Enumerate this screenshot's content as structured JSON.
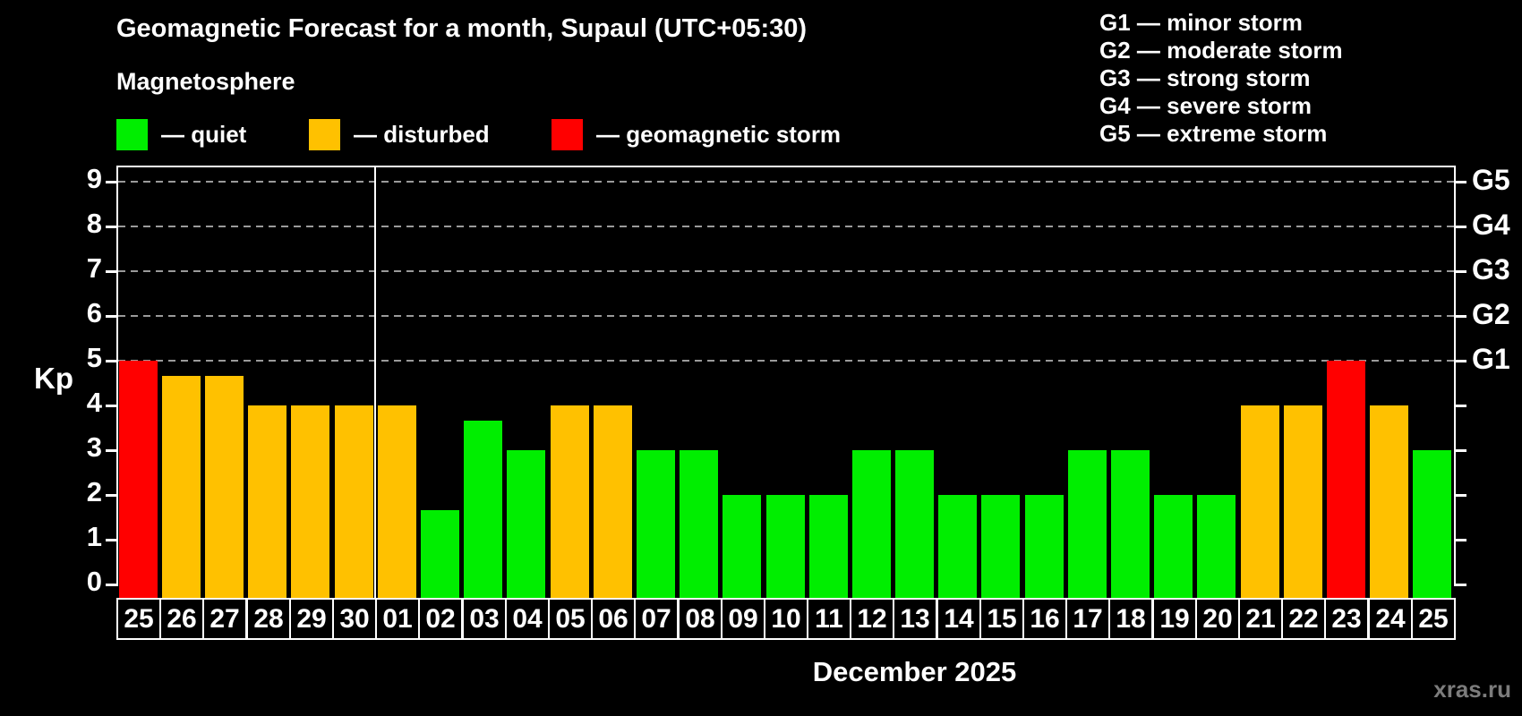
{
  "header": {
    "title": "Geomagnetic Forecast for a month, Supaul (UTC+05:30)",
    "subtitle": "Magnetosphere"
  },
  "kp_legend": {
    "items": [
      {
        "status": "quiet",
        "label": "— quiet"
      },
      {
        "status": "disturbed",
        "label": "— disturbed"
      },
      {
        "status": "storm",
        "label": "— geomagnetic storm"
      }
    ]
  },
  "g_legend": {
    "items": [
      "G1 — minor storm",
      "G2 — moderate storm",
      "G3 — strong storm",
      "G4 — severe storm",
      "G5 — extreme storm"
    ]
  },
  "colors": {
    "quiet": "#00ee00",
    "disturbed": "#ffc100",
    "storm": "#ff0000",
    "grid": "#9a9a9a",
    "axis": "#ffffff",
    "watermark": "#7c7c7c"
  },
  "axes": {
    "y_left_label": "Kp",
    "y_left_ticks": [
      "0",
      "1",
      "2",
      "3",
      "4",
      "5",
      "6",
      "7",
      "8",
      "9"
    ],
    "y_right_ticks": [
      {
        "label": "G1",
        "kp": 5
      },
      {
        "label": "G2",
        "kp": 6
      },
      {
        "label": "G3",
        "kp": 7
      },
      {
        "label": "G4",
        "kp": 8
      },
      {
        "label": "G5",
        "kp": 9
      }
    ],
    "x_label": "December 2025"
  },
  "chart_data": {
    "type": "bar",
    "title": "Geomagnetic Forecast for a month, Supaul (UTC+05:30)",
    "ylabel": "Kp",
    "xlabel": "December 2025",
    "ylim": [
      0,
      9.4
    ],
    "grid": "dashed horizontal at Kp 5-9 (G1-G5)",
    "grid_levels": [
      5,
      6,
      7,
      8,
      9
    ],
    "month_boundary_after_index": 5,
    "categories": [
      "25",
      "26",
      "27",
      "28",
      "29",
      "30",
      "01",
      "02",
      "03",
      "04",
      "05",
      "06",
      "07",
      "08",
      "09",
      "10",
      "11",
      "12",
      "13",
      "14",
      "15",
      "16",
      "17",
      "18",
      "19",
      "20",
      "21",
      "22",
      "23",
      "24",
      "25"
    ],
    "values": [
      5,
      4.67,
      4.67,
      4,
      4,
      4,
      4,
      1.67,
      3.67,
      3,
      4,
      4,
      3,
      3,
      2,
      2,
      2,
      3,
      3,
      2,
      2,
      2,
      3,
      3,
      2,
      2,
      4,
      4,
      5,
      4,
      3
    ],
    "statuses": [
      "storm",
      "disturbed",
      "disturbed",
      "disturbed",
      "disturbed",
      "disturbed",
      "disturbed",
      "quiet",
      "quiet",
      "quiet",
      "disturbed",
      "disturbed",
      "quiet",
      "quiet",
      "quiet",
      "quiet",
      "quiet",
      "quiet",
      "quiet",
      "quiet",
      "quiet",
      "quiet",
      "quiet",
      "quiet",
      "quiet",
      "quiet",
      "disturbed",
      "disturbed",
      "storm",
      "disturbed",
      "quiet"
    ]
  },
  "footer": {
    "watermark": "xras.ru"
  }
}
